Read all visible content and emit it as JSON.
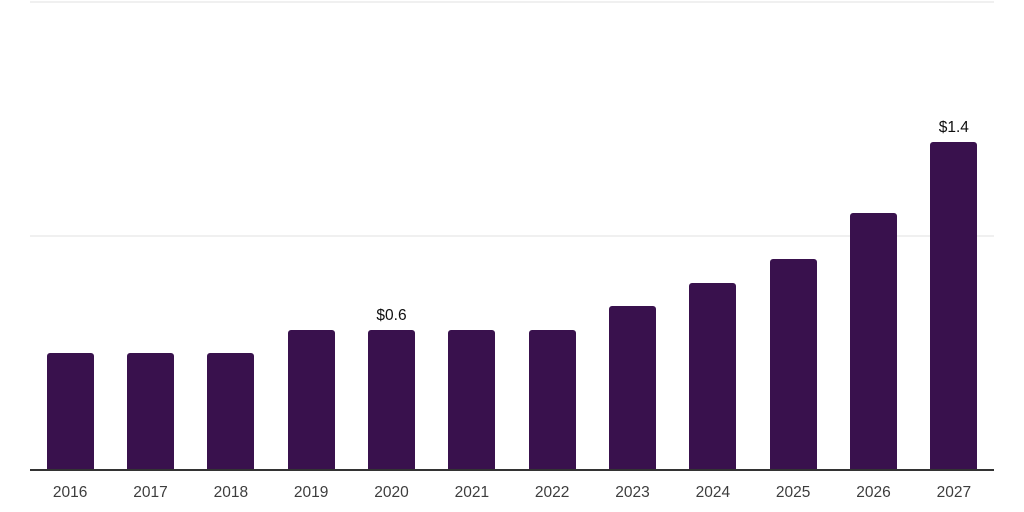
{
  "chart_data": {
    "type": "bar",
    "title": "",
    "xlabel": "",
    "ylabel": "",
    "categories": [
      "2016",
      "2017",
      "2018",
      "2019",
      "2020",
      "2021",
      "2022",
      "2023",
      "2024",
      "2025",
      "2026",
      "2027"
    ],
    "values": [
      0.5,
      0.5,
      0.5,
      0.6,
      0.6,
      0.6,
      0.6,
      0.7,
      0.8,
      0.9,
      1.1,
      1.4
    ],
    "bar_labels": [
      "",
      "",
      "",
      "",
      "$0.6",
      "",
      "",
      "",
      "",
      "",
      "",
      "$1.4"
    ],
    "ylim": [
      0,
      2
    ],
    "y_gridlines": [
      1,
      2
    ],
    "grid": "horizontal-only",
    "legend_position": "none",
    "colors": {
      "bar": "#39114D",
      "axis_line": "#333333",
      "gridline": "#F0F0F0",
      "tick_label": "#3D3D3D",
      "bar_label": "#0E0E0E",
      "background": "#FFFFFF"
    }
  }
}
